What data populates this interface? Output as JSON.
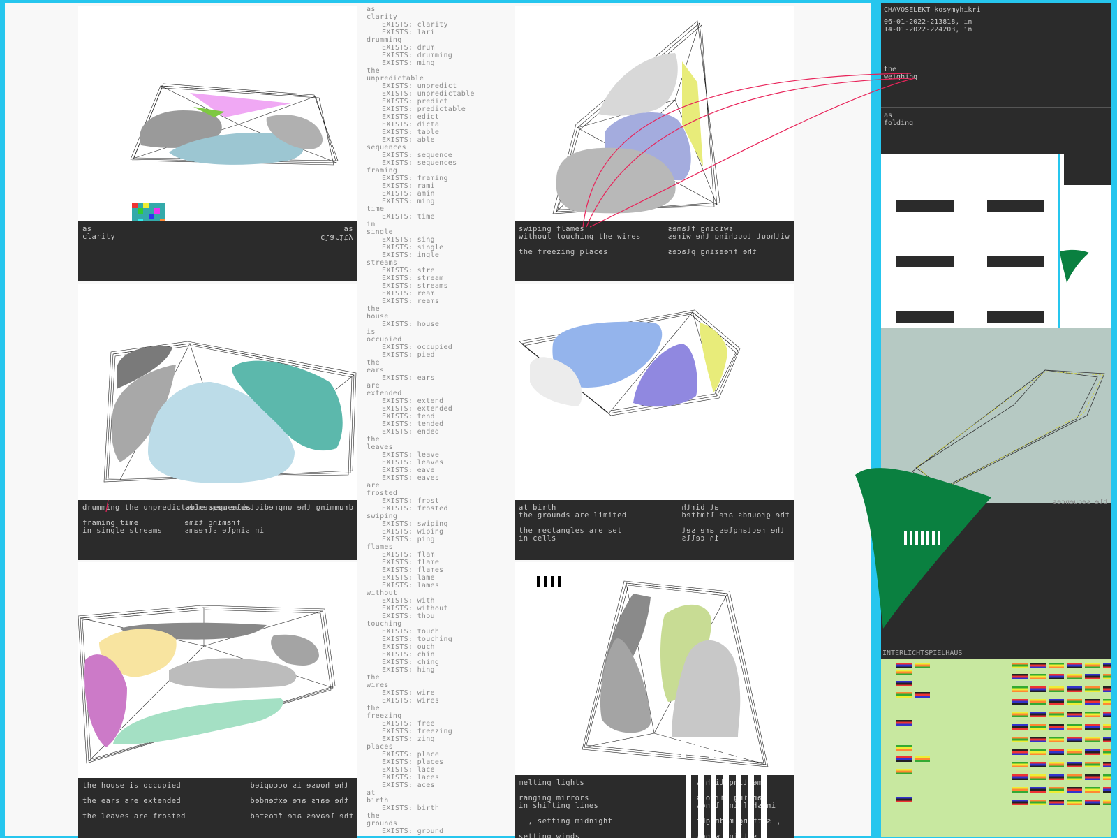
{
  "panels": [
    {
      "caption_left": [
        "as",
        "clarity"
      ],
      "caption_right": [
        "as",
        "clarity"
      ]
    },
    {
      "caption_left": [
        "swiping flames",
        "without touching the wires",
        "",
        "the freezing places"
      ],
      "caption_right": [
        "swiping flames",
        "without touching the wires",
        "",
        "the freezing places"
      ]
    },
    {
      "caption_left": [
        "drumming the unpredictable sequences",
        "",
        "framing time",
        "in single streams"
      ],
      "caption_right": [
        "drumming the unpredictable sequences",
        "",
        "framing time",
        "in single streams"
      ]
    },
    {
      "caption_left": [
        "at birth",
        "the grounds are limited",
        "",
        "the rectangles are set",
        "in cells"
      ],
      "caption_right": [
        "at birth",
        "the grounds are limited",
        "",
        "the rectangles are set",
        "in cells"
      ]
    },
    {
      "caption_left": [
        "the house is occupied",
        "",
        "the ears are extended",
        "",
        "the leaves are frosted"
      ],
      "caption_right": [
        "the house is occupied",
        "",
        "the ears are extended",
        "",
        "the leaves are frosted"
      ]
    },
    {
      "caption_left": [
        "melting lights",
        "",
        "ranging mirrors",
        "in shifting lines",
        "",
        "  , setting midnight",
        "",
        "setting winds"
      ],
      "caption_right": [
        "melting lights",
        "",
        "ranging mirrors",
        "in shifting lines",
        "",
        "  , setting midnight",
        "",
        "setting winds"
      ]
    }
  ],
  "wordlist": [
    "as",
    "clarity",
    "~EXISTS: clarity",
    "~EXISTS: lari",
    "drumming",
    "~EXISTS: drum",
    "~EXISTS: drumming",
    "~EXISTS: ming",
    "the",
    "unpredictable",
    "~EXISTS: unpredict",
    "~EXISTS: unpredictable",
    "~EXISTS: predict",
    "~EXISTS: predictable",
    "~EXISTS: edict",
    "~EXISTS: dicta",
    "~EXISTS: table",
    "~EXISTS: able",
    "sequences",
    "~EXISTS: sequence",
    "~EXISTS: sequences",
    "framing",
    "~EXISTS: framing",
    "~EXISTS: rami",
    "~EXISTS: amin",
    "~EXISTS: ming",
    "time",
    "~EXISTS: time",
    "in",
    "single",
    "~EXISTS: sing",
    "~EXISTS: single",
    "~EXISTS: ingle",
    "streams",
    "~EXISTS: stre",
    "~EXISTS: stream",
    "~EXISTS: streams",
    "~EXISTS: ream",
    "~EXISTS: reams",
    "the",
    "house",
    "~EXISTS: house",
    "is",
    "occupied",
    "~EXISTS: occupied",
    "~EXISTS: pied",
    "the",
    "ears",
    "~EXISTS: ears",
    "are",
    "extended",
    "~EXISTS: extend",
    "~EXISTS: extended",
    "~EXISTS: tend",
    "~EXISTS: tended",
    "~EXISTS: ended",
    "the",
    "leaves",
    "~EXISTS: leave",
    "~EXISTS: leaves",
    "~EXISTS: eave",
    "~EXISTS: eaves",
    "are",
    "frosted",
    "~EXISTS: frost",
    "~EXISTS: frosted",
    "swiping",
    "~EXISTS: swiping",
    "~EXISTS: wiping",
    "~EXISTS: ping",
    "flames",
    "~EXISTS: flam",
    "~EXISTS: flame",
    "~EXISTS: flames",
    "~EXISTS: lame",
    "~EXISTS: lames",
    "without",
    "~EXISTS: with",
    "~EXISTS: without",
    "~EXISTS: thou",
    "touching",
    "~EXISTS: touch",
    "~EXISTS: touching",
    "~EXISTS: ouch",
    "~EXISTS: chin",
    "~EXISTS: ching",
    "~EXISTS: hing",
    "the",
    "wires",
    "~EXISTS: wire",
    "~EXISTS: wires",
    "the",
    "freezing",
    "~EXISTS: free",
    "~EXISTS: freezing",
    "~EXISTS: zing",
    "places",
    "~EXISTS: place",
    "~EXISTS: places",
    "~EXISTS: lace",
    "~EXISTS: laces",
    "~EXISTS: aces",
    "at",
    "birth",
    "~EXISTS: birth",
    "the",
    "grounds",
    "~EXISTS: ground"
  ],
  "sidebar": {
    "title": "CHAVOSELEKT kosymyhikri",
    "log": [
      "06-01-2022-213818, in",
      "14-01-2022-224203, in"
    ],
    "box2": [
      "the",
      "weighing"
    ],
    "box3": [
      "as",
      "folding"
    ],
    "map_label": "ble sequences",
    "green_title": "INTERLICHTSPIELHAUS"
  },
  "colors": {
    "accent": "#e8245a",
    "green": "#0a8040",
    "frame": "#26c6ee"
  }
}
